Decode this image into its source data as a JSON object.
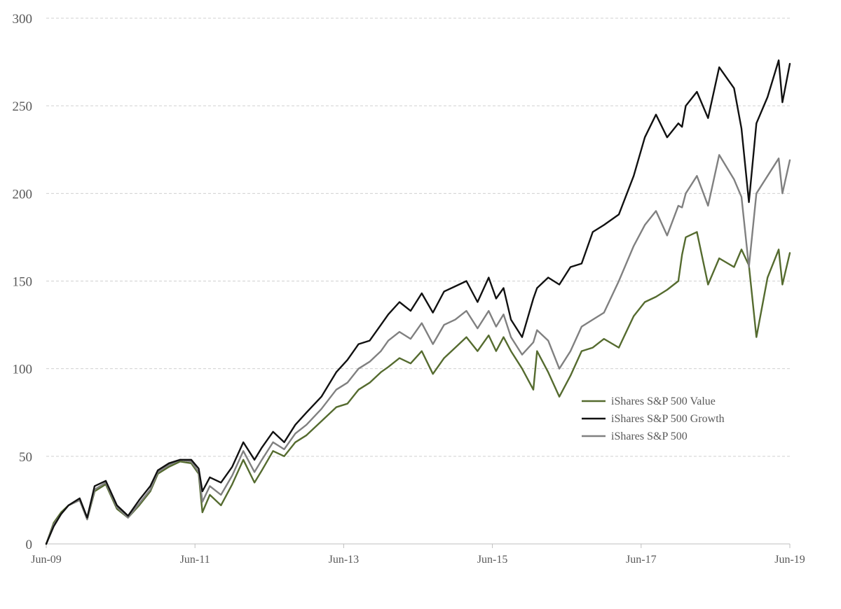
{
  "chart_data": {
    "type": "line",
    "title": "",
    "xlabel": "",
    "ylabel": "",
    "ylim": [
      0,
      300
    ],
    "y_ticks": [
      0,
      50,
      100,
      150,
      200,
      250,
      300
    ],
    "y_tick_labels": [
      "0",
      "50",
      "100",
      "150",
      "200",
      "250",
      "300"
    ],
    "x_range": [
      2009.5,
      2019.5
    ],
    "x_ticks": [
      2009.5,
      2011.5,
      2013.5,
      2015.5,
      2017.5,
      2019.5
    ],
    "x_tick_labels": [
      "Jun-09",
      "Jun-11",
      "Jun-13",
      "Jun-15",
      "Jun-17",
      "Jun-19"
    ],
    "grid": "horizontal dashed",
    "legend_position": "center-right",
    "series": [
      {
        "name": "iShares S&P 500 Value",
        "color": "#556b2f",
        "x": [
          2009.5,
          2009.6,
          2009.7,
          2009.8,
          2009.95,
          2010.05,
          2010.15,
          2010.3,
          2010.45,
          2010.6,
          2010.75,
          2010.9,
          2011.0,
          2011.15,
          2011.3,
          2011.45,
          2011.55,
          2011.6,
          2011.7,
          2011.85,
          2012.0,
          2012.15,
          2012.3,
          2012.4,
          2012.55,
          2012.7,
          2012.85,
          2013.0,
          2013.2,
          2013.4,
          2013.55,
          2013.7,
          2013.85,
          2014.0,
          2014.1,
          2014.25,
          2014.4,
          2014.55,
          2014.7,
          2014.85,
          2015.0,
          2015.15,
          2015.3,
          2015.45,
          2015.55,
          2015.65,
          2015.75,
          2015.9,
          2016.05,
          2016.1,
          2016.25,
          2016.4,
          2016.55,
          2016.7,
          2016.85,
          2017.0,
          2017.2,
          2017.4,
          2017.55,
          2017.7,
          2017.85,
          2018.0,
          2018.05,
          2018.1,
          2018.25,
          2018.4,
          2018.55,
          2018.75,
          2018.85,
          2018.95,
          2019.05,
          2019.2,
          2019.35,
          2019.4,
          2019.5
        ],
        "values": [
          0,
          12,
          18,
          22,
          25,
          14,
          30,
          34,
          20,
          15,
          22,
          30,
          40,
          44,
          47,
          46,
          40,
          18,
          28,
          22,
          34,
          48,
          35,
          42,
          53,
          50,
          58,
          62,
          70,
          78,
          80,
          88,
          92,
          98,
          101,
          106,
          103,
          110,
          97,
          106,
          112,
          118,
          110,
          119,
          110,
          118,
          110,
          100,
          88,
          110,
          98,
          84,
          96,
          110,
          112,
          117,
          112,
          130,
          138,
          141,
          145,
          150,
          165,
          175,
          178,
          148,
          163,
          158,
          168,
          159,
          118,
          152,
          168,
          148,
          166
        ]
      },
      {
        "name": "iShares S&P 500 Growth",
        "color": "#111111",
        "x": [
          2009.5,
          2009.6,
          2009.7,
          2009.8,
          2009.95,
          2010.05,
          2010.15,
          2010.3,
          2010.45,
          2010.6,
          2010.75,
          2010.9,
          2011.0,
          2011.15,
          2011.3,
          2011.45,
          2011.55,
          2011.6,
          2011.7,
          2011.85,
          2012.0,
          2012.15,
          2012.3,
          2012.4,
          2012.55,
          2012.7,
          2012.85,
          2013.0,
          2013.2,
          2013.4,
          2013.55,
          2013.7,
          2013.85,
          2014.0,
          2014.1,
          2014.25,
          2014.4,
          2014.55,
          2014.7,
          2014.85,
          2015.0,
          2015.15,
          2015.3,
          2015.45,
          2015.55,
          2015.65,
          2015.75,
          2015.9,
          2016.05,
          2016.1,
          2016.25,
          2016.4,
          2016.55,
          2016.7,
          2016.85,
          2017.0,
          2017.2,
          2017.4,
          2017.55,
          2017.7,
          2017.85,
          2018.0,
          2018.05,
          2018.1,
          2018.25,
          2018.4,
          2018.55,
          2018.75,
          2018.85,
          2018.95,
          2019.05,
          2019.2,
          2019.35,
          2019.4,
          2019.5
        ],
        "values": [
          0,
          10,
          17,
          22,
          26,
          15,
          33,
          36,
          22,
          16,
          25,
          33,
          42,
          46,
          48,
          48,
          43,
          30,
          38,
          35,
          44,
          58,
          48,
          55,
          64,
          58,
          68,
          75,
          84,
          98,
          105,
          114,
          116,
          125,
          131,
          138,
          133,
          143,
          132,
          144,
          147,
          150,
          138,
          152,
          140,
          146,
          128,
          118,
          140,
          146,
          152,
          148,
          158,
          160,
          178,
          182,
          188,
          210,
          232,
          245,
          232,
          240,
          238,
          250,
          258,
          243,
          272,
          260,
          237,
          195,
          240,
          255,
          276,
          252,
          274
        ]
      },
      {
        "name": "iShares S&P 500",
        "color": "#808080",
        "x": [
          2009.5,
          2009.6,
          2009.7,
          2009.8,
          2009.95,
          2010.05,
          2010.15,
          2010.3,
          2010.45,
          2010.6,
          2010.75,
          2010.9,
          2011.0,
          2011.15,
          2011.3,
          2011.45,
          2011.55,
          2011.6,
          2011.7,
          2011.85,
          2012.0,
          2012.15,
          2012.3,
          2012.4,
          2012.55,
          2012.7,
          2012.85,
          2013.0,
          2013.2,
          2013.4,
          2013.55,
          2013.7,
          2013.85,
          2014.0,
          2014.1,
          2014.25,
          2014.4,
          2014.55,
          2014.7,
          2014.85,
          2015.0,
          2015.15,
          2015.3,
          2015.45,
          2015.55,
          2015.65,
          2015.75,
          2015.9,
          2016.05,
          2016.1,
          2016.25,
          2016.4,
          2016.55,
          2016.7,
          2016.85,
          2017.0,
          2017.2,
          2017.4,
          2017.55,
          2017.7,
          2017.85,
          2018.0,
          2018.05,
          2018.1,
          2018.25,
          2018.4,
          2018.55,
          2018.75,
          2018.85,
          2018.95,
          2019.05,
          2019.2,
          2019.35,
          2019.4,
          2019.5
        ],
        "values": [
          0,
          11,
          17,
          22,
          25,
          14,
          31,
          35,
          21,
          15,
          23,
          31,
          41,
          45,
          48,
          47,
          41,
          24,
          33,
          28,
          39,
          53,
          41,
          48,
          58,
          54,
          63,
          68,
          77,
          88,
          92,
          100,
          104,
          110,
          116,
          121,
          117,
          126,
          114,
          125,
          128,
          133,
          123,
          133,
          124,
          131,
          118,
          108,
          115,
          122,
          116,
          100,
          110,
          124,
          128,
          132,
          150,
          170,
          182,
          190,
          176,
          193,
          192,
          200,
          210,
          193,
          222,
          208,
          198,
          158,
          200,
          210,
          220,
          200,
          219
        ]
      }
    ]
  }
}
